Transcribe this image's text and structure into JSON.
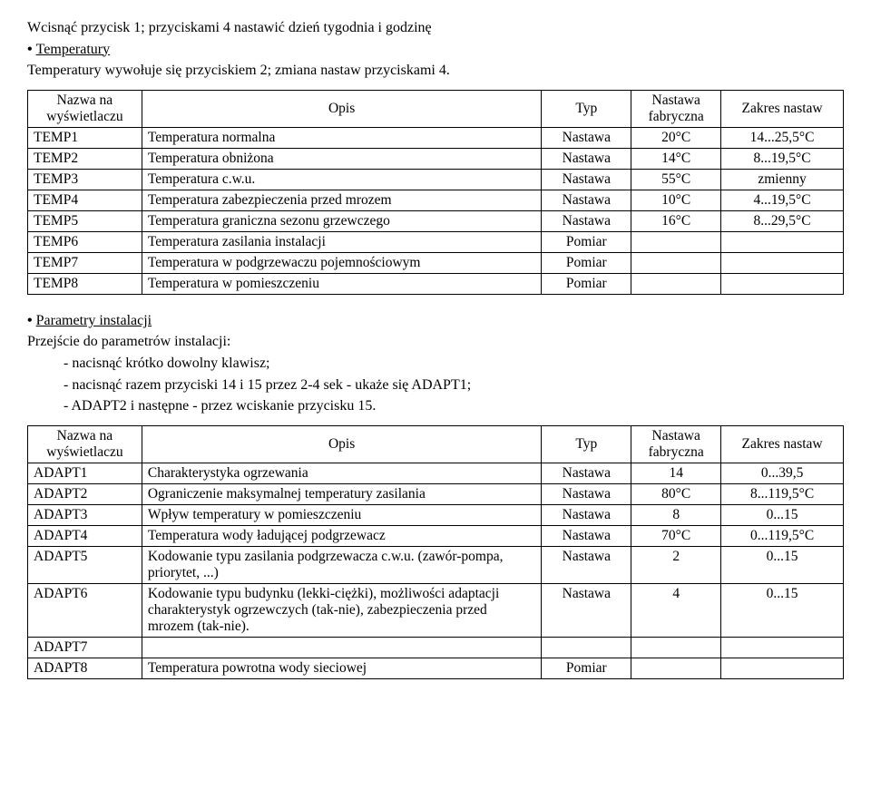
{
  "intro": {
    "line1": "Wcisnąć przycisk 1; przyciskami 4 nastawić dzień tygodnia i godzinę",
    "bullet1": "Temperatury",
    "line2": "Temperatury wywołuje się przyciskiem 2; zmiana nastaw przyciskami 4."
  },
  "table1": {
    "headers": {
      "name": "Nazwa na wyświetlaczu",
      "desc": "Opis",
      "type": "Typ",
      "fab": "Nastawa fabryczna",
      "range": "Zakres nastaw"
    },
    "rows": [
      {
        "name": "TEMP1",
        "desc": "Temperatura normalna",
        "type": "Nastawa",
        "fab": "20°C",
        "range": "14...25,5°C"
      },
      {
        "name": "TEMP2",
        "desc": "Temperatura obniżona",
        "type": "Nastawa",
        "fab": "14°C",
        "range": "8...19,5°C"
      },
      {
        "name": "TEMP3",
        "desc": "Temperatura c.w.u.",
        "type": "Nastawa",
        "fab": "55°C",
        "range": "zmienny"
      },
      {
        "name": "TEMP4",
        "desc": "Temperatura zabezpieczenia przed mrozem",
        "type": "Nastawa",
        "fab": "10°C",
        "range": "4...19,5°C"
      },
      {
        "name": "TEMP5",
        "desc": "Temperatura graniczna sezonu grzewczego",
        "type": "Nastawa",
        "fab": "16°C",
        "range": "8...29,5°C"
      },
      {
        "name": "TEMP6",
        "desc": "Temperatura zasilania instalacji",
        "type": "Pomiar",
        "fab": "",
        "range": ""
      },
      {
        "name": "TEMP7",
        "desc": "Temperatura w podgrzewaczu pojemnościowym",
        "type": "Pomiar",
        "fab": "",
        "range": ""
      },
      {
        "name": "TEMP8",
        "desc": "Temperatura w pomieszczeniu",
        "type": "Pomiar",
        "fab": "",
        "range": ""
      }
    ]
  },
  "mid": {
    "bullet": "Parametry instalacji",
    "line": "Przejście do parametrów instalacji:",
    "item1": "nacisnąć krótko dowolny klawisz;",
    "item2": "nacisnąć razem przyciski 14 i 15 przez 2-4 sek - ukaże się ADAPT1;",
    "item3": "ADAPT2 i następne - przez wciskanie przycisku 15."
  },
  "table2": {
    "headers": {
      "name": "Nazwa na wyświetlaczu",
      "desc": "Opis",
      "type": "Typ",
      "fab": "Nastawa fabryczna",
      "range": "Zakres nastaw"
    },
    "rows": [
      {
        "name": "ADAPT1",
        "desc": "Charakterystyka ogrzewania",
        "type": "Nastawa",
        "fab": "14",
        "range": "0...39,5"
      },
      {
        "name": "ADAPT2",
        "desc": "Ograniczenie maksymalnej temperatury zasilania",
        "type": "Nastawa",
        "fab": "80°C",
        "range": "8...119,5°C"
      },
      {
        "name": "ADAPT3",
        "desc": "Wpływ temperatury w pomieszczeniu",
        "type": "Nastawa",
        "fab": "8",
        "range": "0...15"
      },
      {
        "name": "ADAPT4",
        "desc": "Temperatura wody ładującej podgrzewacz",
        "type": "Nastawa",
        "fab": "70°C",
        "range": "0...119,5°C"
      },
      {
        "name": "ADAPT5",
        "desc": "Kodowanie typu zasilania podgrzewacza c.w.u. (zawór-pompa, priorytet, ...)",
        "type": "Nastawa",
        "fab": "2",
        "range": "0...15"
      },
      {
        "name": "ADAPT6",
        "desc": "Kodowanie typu budynku (lekki-ciężki), możliwości adaptacji charakterystyk ogrzewczych (tak-nie), zabezpieczenia przed mrozem (tak-nie).",
        "type": "Nastawa",
        "fab": "4",
        "range": "0...15"
      },
      {
        "name": "ADAPT7",
        "desc": "",
        "type": "",
        "fab": "",
        "range": ""
      },
      {
        "name": "ADAPT8",
        "desc": "Temperatura powrotna wody sieciowej",
        "type": "Pomiar",
        "fab": "",
        "range": ""
      }
    ]
  }
}
